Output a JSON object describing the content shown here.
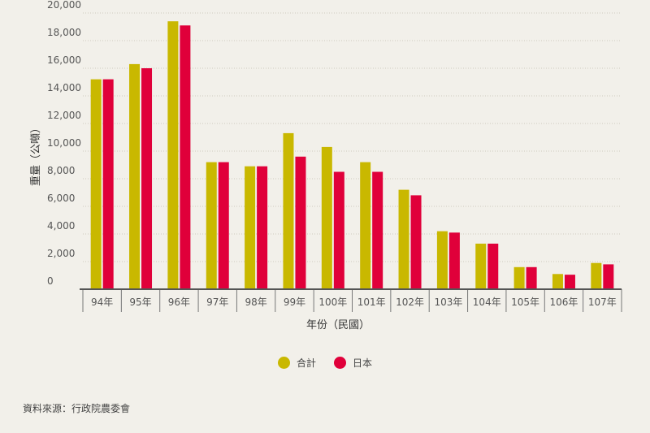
{
  "chart_data": {
    "type": "bar",
    "categories": [
      "94年",
      "95年",
      "96年",
      "97年",
      "98年",
      "99年",
      "100年",
      "101年",
      "102年",
      "103年",
      "104年",
      "105年",
      "106年",
      "107年"
    ],
    "series": [
      {
        "name": "合計",
        "color": "#c9b800",
        "values": [
          15200,
          16300,
          19400,
          9200,
          8900,
          11300,
          10300,
          9200,
          7200,
          4200,
          3300,
          1600,
          1100,
          1900
        ]
      },
      {
        "name": "日本",
        "color": "#e0003a",
        "values": [
          15200,
          16000,
          19100,
          9200,
          8900,
          9600,
          8500,
          8500,
          6800,
          4100,
          3300,
          1600,
          1050,
          1800
        ]
      }
    ],
    "ylim": [
      0,
      20000
    ],
    "yticks": [
      "0",
      "2,000",
      "4,000",
      "6,000",
      "8,000",
      "10,000",
      "12,000",
      "14,000",
      "16,000",
      "18,000",
      "20,000"
    ],
    "ylabel": "重量（公噸）",
    "xlabel": "年份（民國）",
    "legend": "bottom-center",
    "grid": "horizontal-dashed"
  },
  "source": "資料來源：行政院農委會"
}
